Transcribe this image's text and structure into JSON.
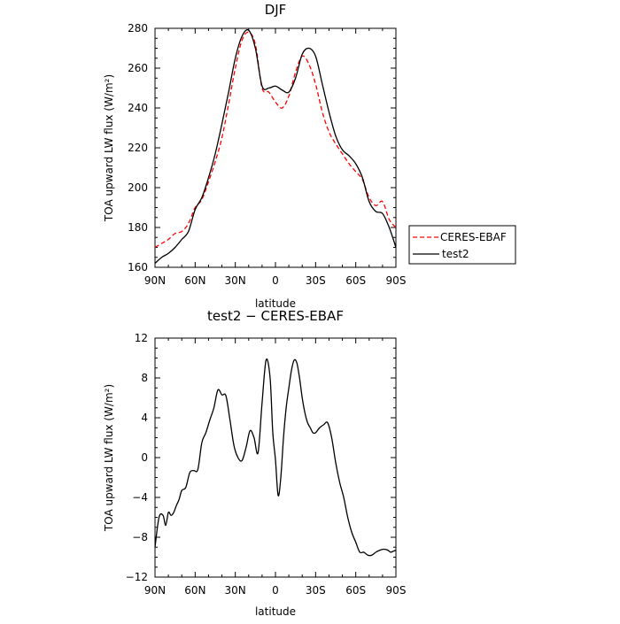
{
  "chart_data": [
    {
      "type": "line",
      "title": "DJF",
      "xlabel": "latitude",
      "ylabel": "TOA upward LW flux (W/m²)",
      "x_range": [
        90,
        -90
      ],
      "x_ticks": [
        90,
        60,
        30,
        0,
        -30,
        -60,
        -90
      ],
      "x_tick_labels": [
        "90N",
        "60N",
        "30N",
        "0",
        "30S",
        "60S",
        "90S"
      ],
      "ylim": [
        160,
        280
      ],
      "y_ticks": [
        160,
        180,
        200,
        220,
        240,
        260,
        280
      ],
      "y_tick_labels": [
        "160",
        "180",
        "200",
        "220",
        "240",
        "260",
        "280"
      ],
      "legend_position": "right",
      "series": [
        {
          "name": "CERES-EBAF",
          "color": "#ff0000",
          "dash": "dashed",
          "x": [
            90,
            85,
            80,
            75,
            70,
            65,
            60,
            55,
            50,
            45,
            40,
            35,
            30,
            25,
            20,
            15,
            10,
            5,
            0,
            -5,
            -10,
            -15,
            -20,
            -25,
            -30,
            -35,
            -40,
            -45,
            -50,
            -55,
            -60,
            -65,
            -70,
            -75,
            -80,
            -85,
            -90
          ],
          "y": [
            170,
            172,
            174,
            177,
            178,
            182,
            190,
            194,
            203,
            213,
            225,
            242,
            260,
            274,
            278,
            272,
            250,
            248,
            243,
            240,
            246,
            258,
            266,
            262,
            252,
            238,
            228,
            222,
            217,
            212,
            208,
            204,
            195,
            191,
            193,
            184,
            180
          ]
        },
        {
          "name": "test2",
          "color": "#000000",
          "dash": "solid",
          "x": [
            90,
            85,
            80,
            75,
            70,
            65,
            60,
            55,
            50,
            45,
            40,
            35,
            30,
            25,
            20,
            15,
            10,
            5,
            0,
            -5,
            -10,
            -15,
            -20,
            -25,
            -30,
            -35,
            -40,
            -45,
            -50,
            -55,
            -60,
            -65,
            -70,
            -75,
            -80,
            -85,
            -90
          ],
          "y": [
            162,
            165,
            167,
            170,
            174,
            178,
            189,
            195,
            205,
            217,
            232,
            248,
            265,
            276,
            279,
            270,
            251,
            250,
            251,
            249,
            248,
            255,
            267,
            270,
            266,
            252,
            238,
            226,
            219,
            216,
            212,
            205,
            193,
            188,
            187,
            180,
            170
          ]
        }
      ]
    },
    {
      "type": "line",
      "title": "test2 − CERES-EBAF",
      "xlabel": "latitude",
      "ylabel": "TOA upward LW flux (W/m²)",
      "x_range": [
        90,
        -90
      ],
      "x_ticks": [
        90,
        60,
        30,
        0,
        -30,
        -60,
        -90
      ],
      "x_tick_labels": [
        "90N",
        "60N",
        "30N",
        "0",
        "30S",
        "60S",
        "90S"
      ],
      "ylim": [
        -12,
        12
      ],
      "y_ticks": [
        -12,
        -8,
        -4,
        0,
        4,
        8,
        12
      ],
      "y_tick_labels": [
        "−12",
        "−8",
        "−4",
        "0",
        "4",
        "8",
        "12"
      ],
      "series": [
        {
          "color": "#000000",
          "x": [
            90,
            87,
            84,
            82,
            80,
            78,
            76,
            74,
            72,
            70,
            67,
            64,
            61,
            58,
            55,
            52,
            49,
            46,
            43,
            40,
            37,
            34,
            31,
            28,
            25,
            22,
            19,
            16,
            13,
            10,
            7,
            4,
            2,
            0,
            -2,
            -4,
            -6,
            -8,
            -10,
            -12,
            -14,
            -16,
            -18,
            -20,
            -22,
            -24,
            -26,
            -28,
            -30,
            -33,
            -36,
            -39,
            -42,
            -45,
            -48,
            -51,
            -54,
            -57,
            -60,
            -63,
            -66,
            -69,
            -72,
            -75,
            -78,
            -81,
            -84,
            -86,
            -88,
            -90
          ],
          "y": [
            -9,
            -6,
            -5.8,
            -6.8,
            -5.5,
            -5.8,
            -5.5,
            -4.8,
            -4.2,
            -3.3,
            -3,
            -1.5,
            -1.3,
            -1.2,
            1.5,
            2.5,
            3.8,
            5,
            6.8,
            6.3,
            6.2,
            3.8,
            1.2,
            0,
            -0.3,
            1,
            2.7,
            2,
            0.5,
            5.5,
            9.8,
            8,
            2.5,
            -0.2,
            -3.8,
            -2,
            2,
            5,
            7,
            8.8,
            9.8,
            9.5,
            8,
            6,
            4.5,
            3.5,
            3,
            2.5,
            2.5,
            3,
            3.3,
            3.5,
            2,
            -0.5,
            -2.5,
            -4,
            -6,
            -7.5,
            -8.5,
            -9.5,
            -9.5,
            -9.8,
            -9.8,
            -9.5,
            -9.3,
            -9.2,
            -9.3,
            -9.5,
            -9.4,
            -9.3
          ]
        }
      ]
    }
  ]
}
